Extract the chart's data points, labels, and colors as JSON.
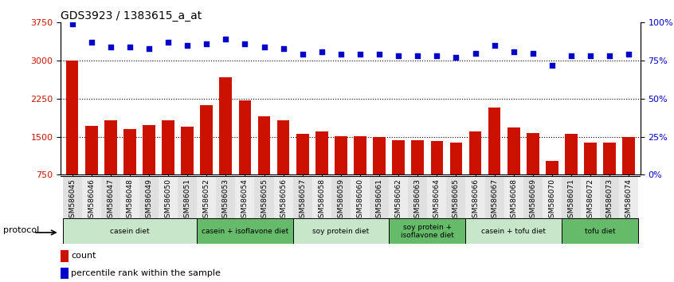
{
  "title": "GDS3923 / 1383615_a_at",
  "samples": [
    "GSM586045",
    "GSM586046",
    "GSM586047",
    "GSM586048",
    "GSM586049",
    "GSM586050",
    "GSM586051",
    "GSM586052",
    "GSM586053",
    "GSM586054",
    "GSM586055",
    "GSM586056",
    "GSM586057",
    "GSM586058",
    "GSM586059",
    "GSM586060",
    "GSM586061",
    "GSM586062",
    "GSM586063",
    "GSM586064",
    "GSM586065",
    "GSM586066",
    "GSM586067",
    "GSM586068",
    "GSM586069",
    "GSM586070",
    "GSM586071",
    "GSM586072",
    "GSM586073",
    "GSM586074"
  ],
  "counts": [
    3000,
    1720,
    1820,
    1650,
    1730,
    1820,
    1700,
    2130,
    2680,
    2220,
    1910,
    1820,
    1560,
    1610,
    1510,
    1510,
    1490,
    1440,
    1430,
    1410,
    1390,
    1600,
    2080,
    1680,
    1580,
    1030,
    1560,
    1380,
    1380,
    1490
  ],
  "percentile_ranks": [
    99,
    87,
    84,
    84,
    83,
    87,
    85,
    86,
    89,
    86,
    84,
    83,
    79,
    81,
    79,
    79,
    79,
    78,
    78,
    78,
    77,
    80,
    85,
    81,
    80,
    72,
    78,
    78,
    78,
    79
  ],
  "bar_color": "#cc1100",
  "dot_color": "#0000cc",
  "ylim_left": [
    750,
    3750
  ],
  "ylim_right": [
    0,
    100
  ],
  "yticks_left": [
    750,
    1500,
    2250,
    3000,
    3750
  ],
  "yticks_right": [
    0,
    25,
    50,
    75,
    100
  ],
  "hlines": [
    1500,
    2250,
    3000
  ],
  "groups": [
    {
      "label": "casein diet",
      "start": 0,
      "end": 7,
      "color": "#c8e6c9"
    },
    {
      "label": "casein + isoflavone diet",
      "start": 7,
      "end": 12,
      "color": "#66bb6a"
    },
    {
      "label": "soy protein diet",
      "start": 12,
      "end": 17,
      "color": "#c8e6c9"
    },
    {
      "label": "soy protein +\nisoflavone diet",
      "start": 17,
      "end": 21,
      "color": "#66bb6a"
    },
    {
      "label": "casein + tofu diet",
      "start": 21,
      "end": 26,
      "color": "#c8e6c9"
    },
    {
      "label": "tofu diet",
      "start": 26,
      "end": 30,
      "color": "#66bb6a"
    }
  ],
  "legend_count_label": "count",
  "legend_pct_label": "percentile rank within the sample"
}
